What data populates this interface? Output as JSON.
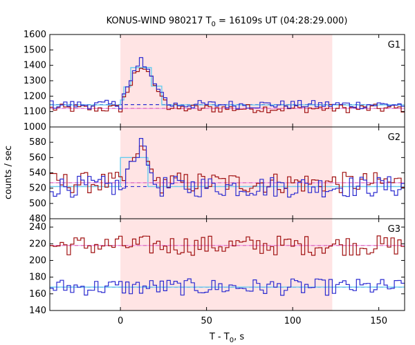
{
  "chart_data": {
    "type": "line",
    "title": "KONUS-WIND 980217 T",
    "title_sub": "0",
    "title_rest": " = 16109s UT (04:28:29.000)",
    "xlabel": "T - T",
    "xlabel_sub": "0",
    "xlabel_rest": ", s",
    "ylabel": "counts / sec",
    "xlim": [
      -41,
      165
    ],
    "xticks": [
      "0",
      "50",
      "100",
      "150"
    ],
    "xtick_values": [
      0,
      50,
      100,
      150
    ],
    "shaded_interval": [
      0,
      123
    ],
    "colors": {
      "red": "#a01010",
      "blue": "#2a2ad0",
      "cyan": "#66ccee",
      "pink": "#ee88ee",
      "shade": "#ffe4e4"
    },
    "panels": [
      {
        "name": "G1",
        "ylim": [
          1000,
          1600
        ],
        "yticks": [
          "1000",
          "1100",
          "1200",
          "1300",
          "1400",
          "1500",
          "1600"
        ],
        "ytick_values": [
          1000,
          1100,
          1200,
          1300,
          1400,
          1500,
          1600
        ],
        "bg_red": 1120,
        "bg_blue": 1145,
        "bg_cyan": 1143,
        "peak_red": [
          [
            0,
            2,
            1195
          ],
          [
            2,
            4,
            1225
          ],
          [
            4,
            6,
            1270
          ],
          [
            6,
            8,
            1350
          ],
          [
            8,
            10,
            1360
          ],
          [
            10,
            12,
            1380
          ],
          [
            12,
            14,
            1375
          ],
          [
            14,
            16,
            1360
          ],
          [
            16,
            18,
            1330
          ],
          [
            18,
            20,
            1270
          ],
          [
            20,
            22,
            1230
          ],
          [
            22,
            24,
            1200
          ],
          [
            24,
            26,
            1175
          ]
        ],
        "peak_blue": [
          [
            0,
            2,
            1215
          ],
          [
            2,
            4,
            1260
          ],
          [
            4,
            6,
            1300
          ],
          [
            6,
            8,
            1365
          ],
          [
            8,
            10,
            1395
          ],
          [
            10,
            12,
            1450
          ],
          [
            12,
            14,
            1390
          ],
          [
            14,
            16,
            1375
          ],
          [
            16,
            18,
            1330
          ],
          [
            18,
            20,
            1280
          ],
          [
            20,
            22,
            1245
          ],
          [
            22,
            24,
            1225
          ],
          [
            24,
            26,
            1190
          ]
        ],
        "cyan_steps": [
          [
            -41,
            0,
            1143
          ],
          [
            0,
            2,
            1175
          ],
          [
            2,
            6,
            1260
          ],
          [
            6,
            18,
            1385
          ],
          [
            18,
            24,
            1265
          ],
          [
            24,
            165,
            1143
          ]
        ],
        "red_noise": 28,
        "blue_noise": 28
      },
      {
        "name": "G2",
        "ylim": [
          480,
          600
        ],
        "yticks": [
          "480",
          "500",
          "520",
          "540",
          "560",
          "580"
        ],
        "ytick_values": [
          480,
          500,
          520,
          540,
          560,
          580
        ],
        "bg_red": 527,
        "bg_blue": 522,
        "bg_cyan": 522,
        "peak_red": [
          [
            0,
            2,
            530
          ],
          [
            2,
            4,
            545
          ],
          [
            4,
            6,
            555
          ],
          [
            6,
            8,
            560
          ],
          [
            8,
            10,
            565
          ],
          [
            10,
            12,
            575
          ],
          [
            12,
            14,
            570
          ],
          [
            14,
            16,
            555
          ],
          [
            16,
            18,
            545
          ],
          [
            18,
            20,
            530
          ]
        ],
        "peak_blue": [
          [
            0,
            2,
            520
          ],
          [
            2,
            4,
            545
          ],
          [
            4,
            6,
            555
          ],
          [
            6,
            8,
            555
          ],
          [
            8,
            10,
            560
          ],
          [
            10,
            12,
            585
          ],
          [
            12,
            14,
            575
          ],
          [
            14,
            16,
            550
          ],
          [
            16,
            18,
            540
          ],
          [
            18,
            20,
            525
          ]
        ],
        "cyan_steps": [
          [
            -41,
            0,
            522
          ],
          [
            0,
            16,
            560
          ],
          [
            16,
            165,
            522
          ]
        ],
        "red_noise": 14,
        "blue_noise": 14
      },
      {
        "name": "G3",
        "ylim": [
          140,
          250
        ],
        "yticks": [
          "140",
          "160",
          "180",
          "200",
          "220",
          "240"
        ],
        "ytick_values": [
          140,
          160,
          180,
          200,
          220,
          240
        ],
        "bg_red": 218,
        "bg_blue": 168,
        "bg_cyan": 168,
        "peak_red": [],
        "peak_blue": [],
        "cyan_steps": [
          [
            -41,
            165,
            168
          ]
        ],
        "red_noise": 12,
        "blue_noise": 10
      }
    ]
  }
}
